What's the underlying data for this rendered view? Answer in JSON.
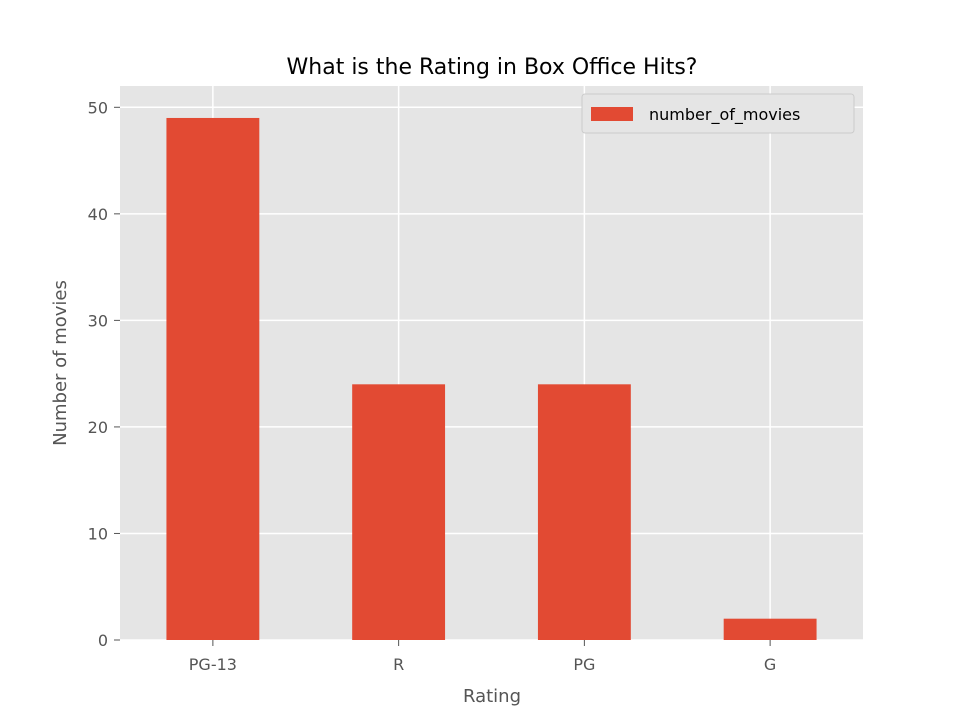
{
  "chart_data": {
    "type": "bar",
    "title": "What is the Rating in Box Office Hits?",
    "xlabel": "Rating",
    "ylabel": "Number of movies",
    "categories": [
      "PG-13",
      "R",
      "PG",
      "G"
    ],
    "series": [
      {
        "name": "number_of_movies",
        "values": [
          49,
          24,
          24,
          2
        ],
        "color": "#E24A33"
      }
    ],
    "ylim": [
      0,
      52
    ],
    "yticks": [
      0,
      10,
      20,
      30,
      40,
      50
    ],
    "grid": true,
    "legend": "top-right",
    "colors": {
      "plot_background": "#E5E5E5",
      "grid": "#FFFFFF",
      "text": "#555555"
    }
  }
}
